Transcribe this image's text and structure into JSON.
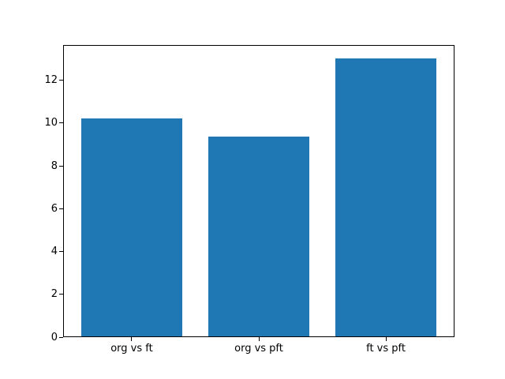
{
  "chart_data": {
    "type": "bar",
    "title": "",
    "xlabel": "",
    "ylabel": "",
    "categories": [
      "org vs ft",
      "org vs pft",
      "ft vs pft"
    ],
    "values": [
      10.2,
      9.33,
      13.0
    ],
    "series": [
      {
        "name": "",
        "values": [
          10.2,
          9.33,
          13.0
        ]
      }
    ],
    "ylim": [
      0,
      13.65
    ],
    "yticks": [
      0,
      2,
      4,
      6,
      8,
      10,
      12
    ],
    "bar_color": "#1f77b4",
    "spine_color": "#000000",
    "background_color": "#ffffff",
    "grid": false,
    "legend_position": "none"
  }
}
